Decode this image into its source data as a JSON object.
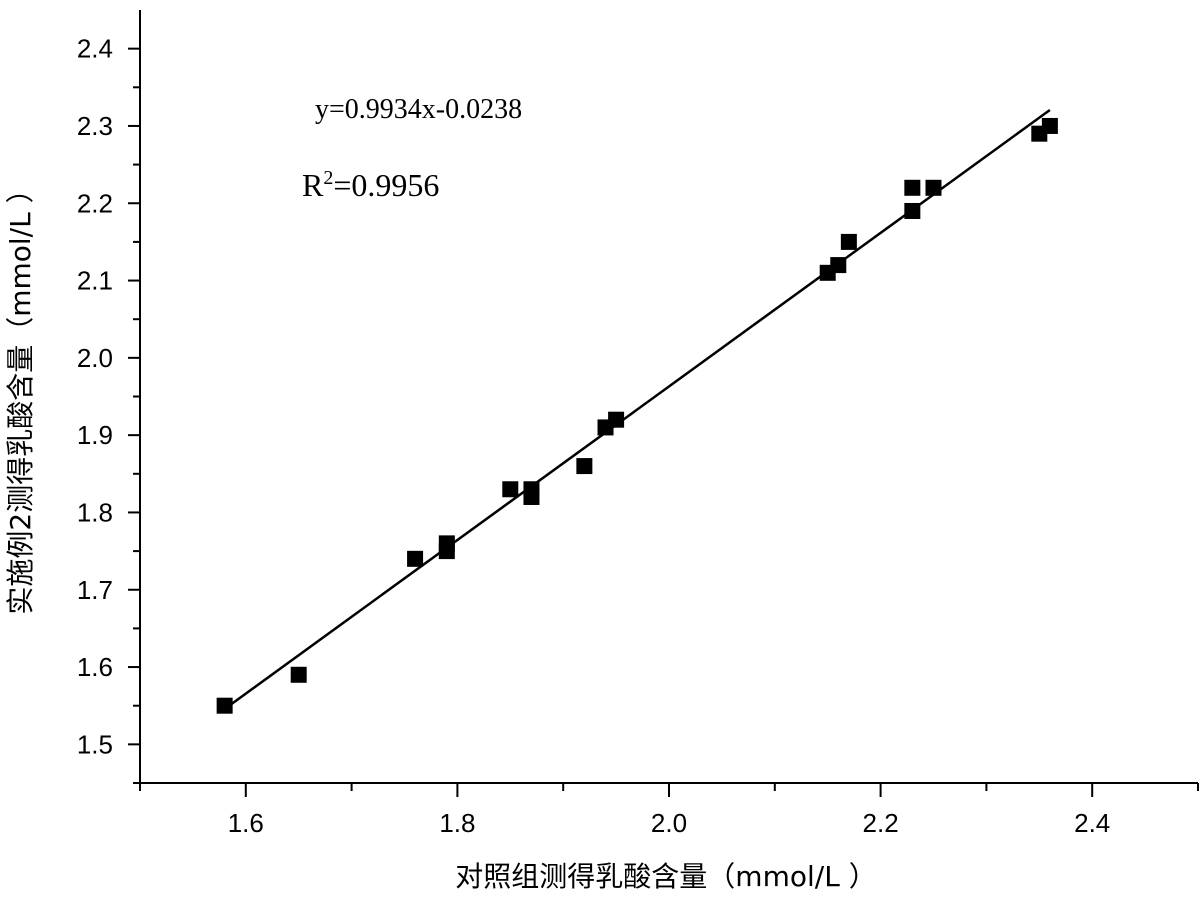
{
  "chart_data": {
    "type": "scatter",
    "xlabel": "对照组测得乳酸含量（mmol/L ）",
    "ylabel": "实施例2测得乳酸含量（mmol/L ）",
    "xlim": [
      1.5,
      2.5
    ],
    "ylim": [
      1.45,
      2.45
    ],
    "x_ticks": [
      "1.6",
      "1.8",
      "2.0",
      "2.2",
      "2.4"
    ],
    "x_tick_values": [
      1.6,
      1.8,
      2.0,
      2.2,
      2.4
    ],
    "y_ticks": [
      "1.5",
      "1.6",
      "1.7",
      "1.8",
      "1.9",
      "2.0",
      "2.1",
      "2.2",
      "2.3",
      "2.4"
    ],
    "y_tick_values": [
      1.5,
      1.6,
      1.7,
      1.8,
      1.9,
      2.0,
      2.1,
      2.2,
      2.3,
      2.4
    ],
    "grid": false,
    "legend": "none",
    "marker": "square",
    "marker_color": "#000000",
    "series": [
      {
        "points": [
          [
            1.58,
            1.55
          ],
          [
            1.65,
            1.59
          ],
          [
            1.76,
            1.74
          ],
          [
            1.79,
            1.75
          ],
          [
            1.79,
            1.76
          ],
          [
            1.85,
            1.83
          ],
          [
            1.87,
            1.82
          ],
          [
            1.87,
            1.83
          ],
          [
            1.92,
            1.86
          ],
          [
            1.94,
            1.91
          ],
          [
            1.95,
            1.92
          ],
          [
            2.15,
            2.11
          ],
          [
            2.16,
            2.12
          ],
          [
            2.17,
            2.15
          ],
          [
            2.23,
            2.19
          ],
          [
            2.23,
            2.22
          ],
          [
            2.25,
            2.22
          ],
          [
            2.35,
            2.29
          ],
          [
            2.36,
            2.3
          ]
        ]
      }
    ],
    "fit_line": {
      "slope": 0.9934,
      "intercept": -0.0238,
      "x_range": [
        1.58,
        2.36
      ],
      "color": "#000000"
    },
    "annotations": {
      "equation": "y=0.9934x-0.0238",
      "r2_prefix": "R",
      "r2_sup": "2",
      "r2_value": "=0.9956"
    }
  }
}
